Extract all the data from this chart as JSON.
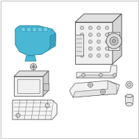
{
  "background_color": "#ffffff",
  "border_color": "#cccccc",
  "highlight_color": "#4ab8d4",
  "line_color": "#555555",
  "fig_width": 2.0,
  "fig_height": 2.0,
  "dpi": 100
}
